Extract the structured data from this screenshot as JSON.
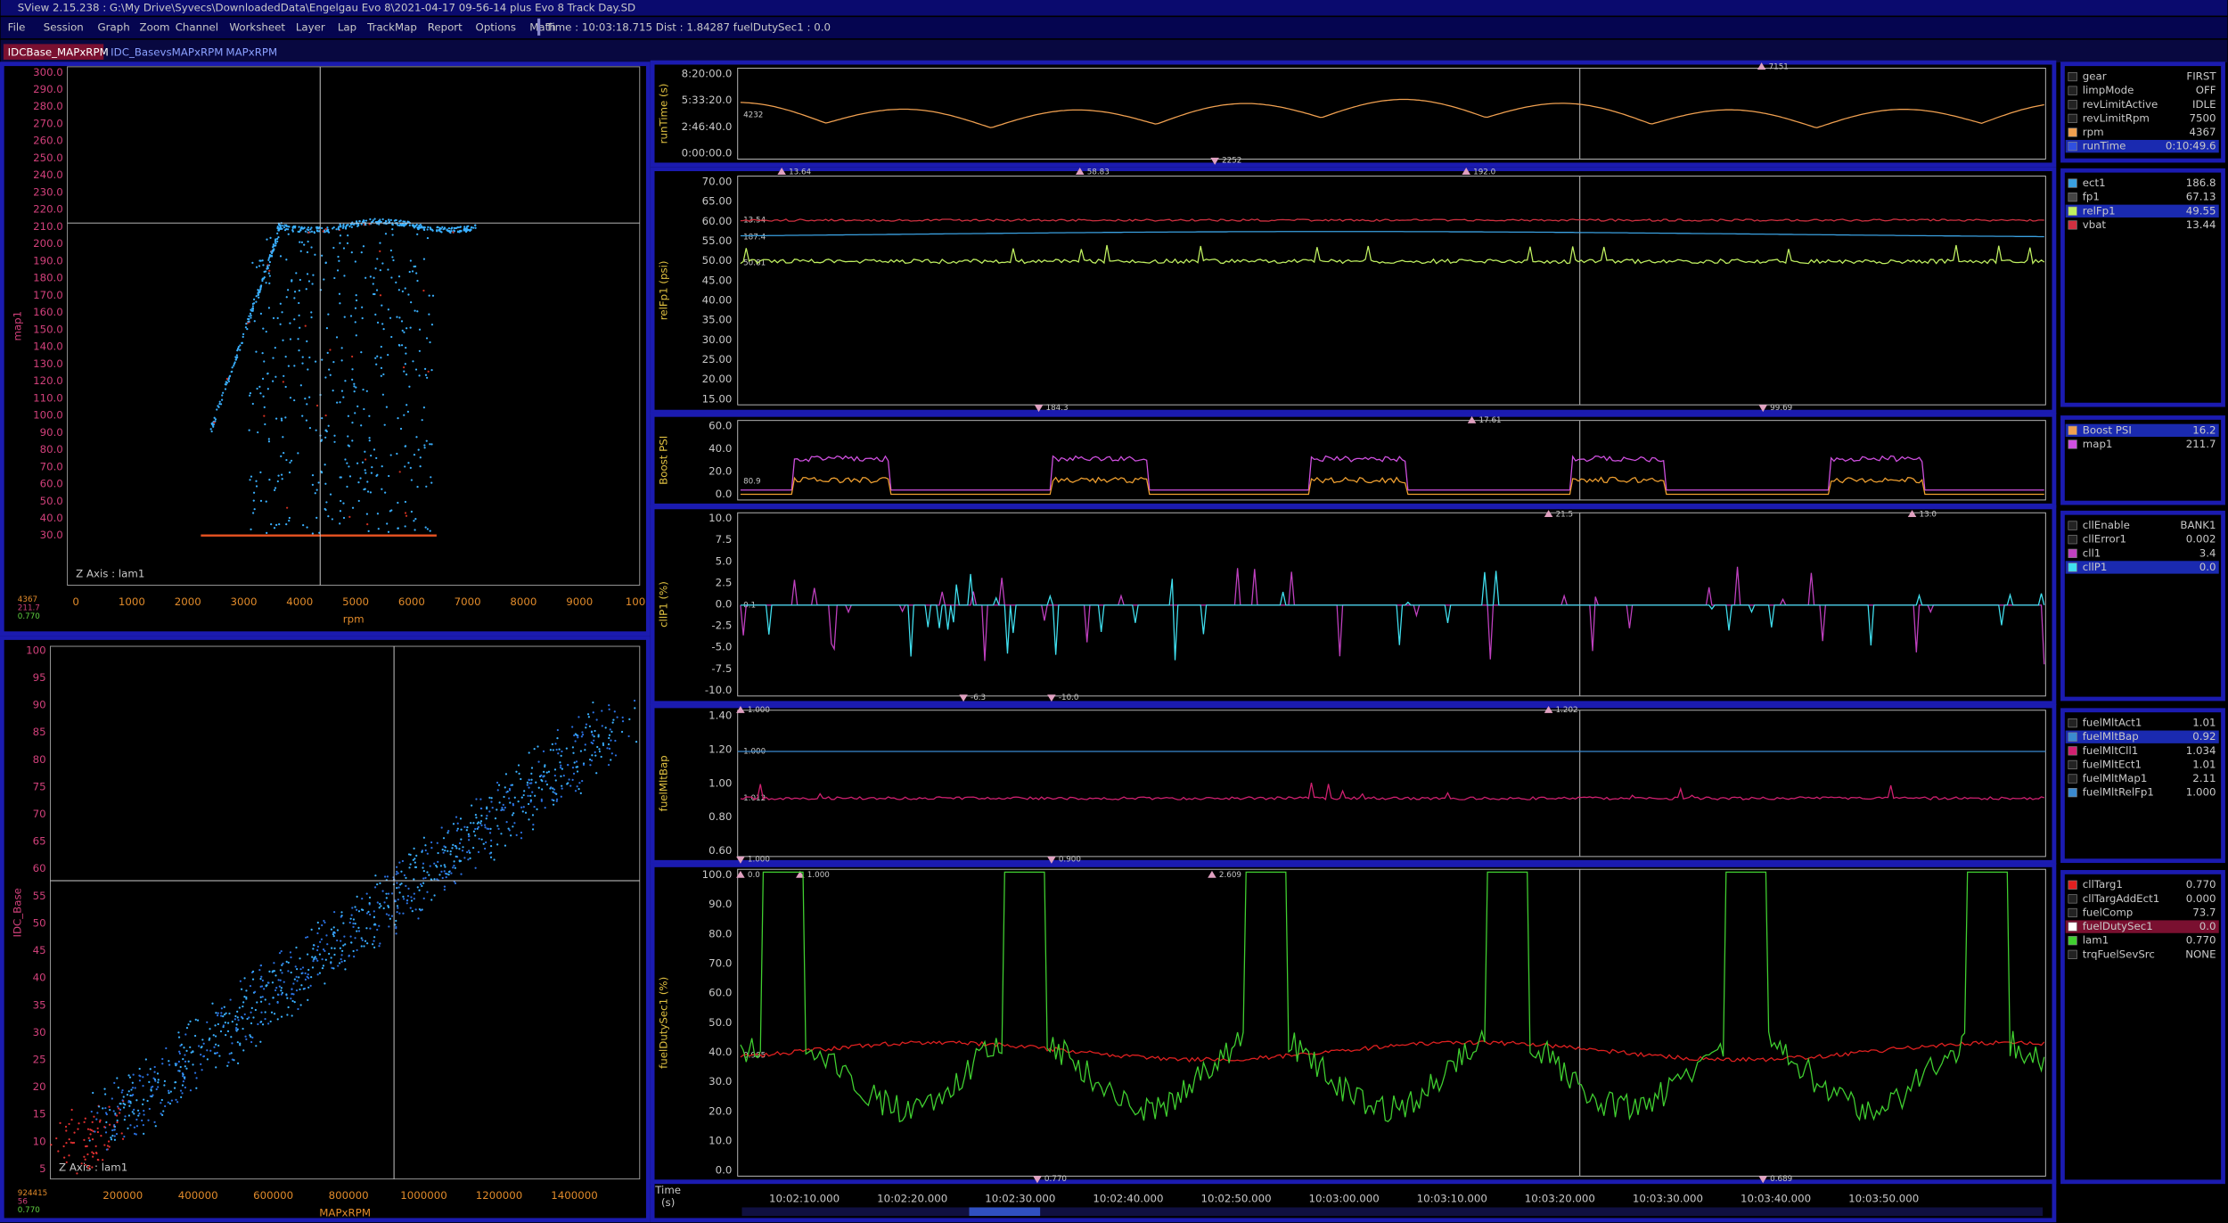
{
  "title_bar": {
    "title": "SView 2.15.238  :  G:\\My Drive\\Syvecs\\DownloadedData\\Engelgau Evo 8\\2021-04-17 09-56-14 plus Evo 8 Track Day.SD"
  },
  "menu": {
    "items": [
      "File",
      "Session",
      "Graph",
      "Zoom",
      "Channel",
      "Worksheet",
      "Layer",
      "Lap",
      "TrackMap",
      "Report",
      "Options",
      "Math"
    ],
    "status": "Time : 10:03:18.715   Dist : 1.84287   fuelDutySec1 : 0.0"
  },
  "tabs": [
    "IDCBase_MAPxRPM",
    "IDC_BasevsMAPxRPM",
    "MAPxRPM"
  ],
  "scatter_plots": [
    {
      "y_label": "map1",
      "x_label": "rpm",
      "z_axis": "Z Axis : lam1",
      "readout": [
        "4367",
        "211.7",
        "0.770"
      ],
      "y_ticks": [
        "300.0",
        "290.0",
        "280.0",
        "270.0",
        "260.0",
        "250.0",
        "240.0",
        "230.0",
        "220.0",
        "210.0",
        "200.0",
        "190.0",
        "180.0",
        "170.0",
        "160.0",
        "150.0",
        "140.0",
        "130.0",
        "120.0",
        "110.0",
        "100.0",
        "90.0",
        "80.0",
        "70.0",
        "60.0",
        "50.0",
        "40.0",
        "30.0"
      ],
      "x_ticks": [
        "0",
        "1000",
        "2000",
        "3000",
        "4000",
        "5000",
        "6000",
        "7000",
        "8000",
        "9000",
        "100"
      ]
    },
    {
      "y_label": "IDC_Base",
      "x_label": "MAPxRPM",
      "z_axis": "Z Axis : lam1",
      "readout": [
        "924415",
        "56",
        "0.770"
      ],
      "y_ticks": [
        "100",
        "95",
        "90",
        "85",
        "80",
        "75",
        "70",
        "65",
        "60",
        "55",
        "50",
        "45",
        "40",
        "35",
        "30",
        "25",
        "20",
        "15",
        "10",
        "5"
      ],
      "x_ticks": [
        "200000",
        "400000",
        "600000",
        "800000",
        "1000000",
        "1200000",
        "1400000"
      ]
    }
  ],
  "time_plots": [
    {
      "y_label": "runTime (s)",
      "y_ticks": [
        "8:20:00.0",
        "5:33:20.0",
        "2:46:40.0",
        "0:00:00.0"
      ],
      "markers": [
        "7151",
        "2252",
        "4232"
      ]
    },
    {
      "y_label": "relFp1 (psi)",
      "y_ticks": [
        "70.00",
        "65.00",
        "60.00",
        "55.00",
        "50.00",
        "45.00",
        "40.00",
        "35.00",
        "30.00",
        "25.00",
        "20.00",
        "15.00"
      ],
      "markers": [
        "13.64",
        "58.83",
        "192.0",
        "184.3",
        "99.69",
        "13.54",
        "187.4",
        "50.81"
      ]
    },
    {
      "y_label": "Boost PSI",
      "y_ticks": [
        "60.0",
        "40.0",
        "20.0",
        "0.0"
      ],
      "markers": [
        "17.61",
        "80.9"
      ]
    },
    {
      "y_label": "cllP1 (%)",
      "y_ticks": [
        "10.0",
        "7.5",
        "5.0",
        "2.5",
        "0.0",
        "-2.5",
        "-5.0",
        "-7.5",
        "-10.0"
      ],
      "markers": [
        "21.5",
        "13.0",
        "-6.3",
        "-10.0",
        "0.1"
      ]
    },
    {
      "y_label": "fuelMltBap",
      "y_ticks": [
        "1.40",
        "1.20",
        "1.00",
        "0.80",
        "0.60"
      ],
      "markers": [
        "1.000",
        "1.202",
        "1.000",
        "0.900",
        "1.000",
        "1.012"
      ]
    },
    {
      "y_label": "fuelDutySec1 (%)",
      "y_ticks": [
        "100.0",
        "90.0",
        "80.0",
        "70.0",
        "60.0",
        "50.0",
        "40.0",
        "30.0",
        "20.0",
        "10.0",
        "0.0"
      ],
      "markers": [
        "0.0",
        "1.000",
        "2.609",
        "0.770",
        "0.689",
        "0.905"
      ]
    }
  ],
  "time_axis": {
    "label": [
      "Time",
      "(s)"
    ],
    "ticks": [
      "10:02:10.000",
      "10:02:20.000",
      "10:02:30.000",
      "10:02:40.000",
      "10:02:50.000",
      "10:03:00.000",
      "10:03:10.000",
      "10:03:20.000",
      "10:03:30.000",
      "10:03:40.000",
      "10:03:50.000"
    ]
  },
  "channel_groups": [
    [
      {
        "name": "gear",
        "value": "FIRST"
      },
      {
        "name": "limpMode",
        "value": "OFF"
      },
      {
        "name": "revLimitActive",
        "value": "IDLE"
      },
      {
        "name": "revLimitRpm",
        "value": "7500"
      },
      {
        "name": "rpm",
        "value": "4367"
      },
      {
        "name": "runTime",
        "value": "0:10:49.6"
      }
    ],
    [
      {
        "name": "ect1",
        "value": "186.8"
      },
      {
        "name": "fp1",
        "value": "67.13"
      },
      {
        "name": "relFp1",
        "value": "49.55"
      },
      {
        "name": "vbat",
        "value": "13.44"
      }
    ],
    [
      {
        "name": "Boost PSI",
        "value": "16.2"
      },
      {
        "name": "map1",
        "value": "211.7"
      }
    ],
    [
      {
        "name": "cllEnable",
        "value": "BANK1"
      },
      {
        "name": "cllError1",
        "value": "0.002"
      },
      {
        "name": "cll1",
        "value": "3.4"
      },
      {
        "name": "cllP1",
        "value": "0.0"
      }
    ],
    [
      {
        "name": "fuelMltAct1",
        "value": "1.01"
      },
      {
        "name": "fuelMltBap",
        "value": "0.92"
      },
      {
        "name": "fuelMltCll1",
        "value": "1.034"
      },
      {
        "name": "fuelMltEct1",
        "value": "1.01"
      },
      {
        "name": "fuelMltMap1",
        "value": "2.11"
      },
      {
        "name": "fuelMltRelFp1",
        "value": "1.000"
      }
    ],
    [
      {
        "name": "cllTarg1",
        "value": "0.770"
      },
      {
        "name": "cllTargAddEct1",
        "value": "0.000"
      },
      {
        "name": "fuelComp",
        "value": "73.7"
      },
      {
        "name": "fuelDutySec1",
        "value": "0.0"
      },
      {
        "name": "lam1",
        "value": "0.770"
      },
      {
        "name": "trqFuelSevSrc",
        "value": "NONE"
      }
    ]
  ]
}
